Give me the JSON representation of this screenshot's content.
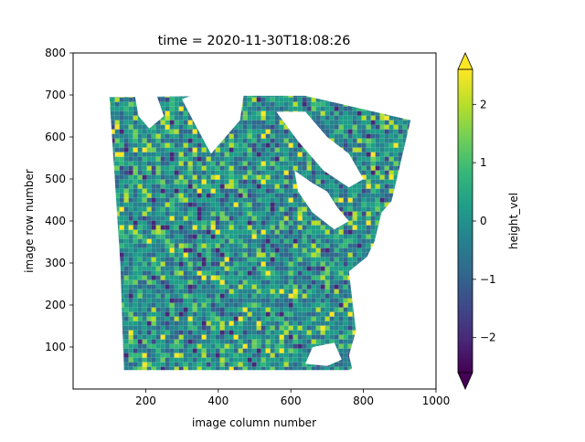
{
  "chart_data": {
    "type": "heatmap",
    "title": "time = 2020-11-30T18:08:26",
    "xlabel": "image column number",
    "ylabel": "image row number",
    "xlim": [
      0,
      1000
    ],
    "ylim": [
      0,
      800
    ],
    "xticks": [
      200,
      400,
      600,
      800,
      1000
    ],
    "yticks": [
      100,
      200,
      300,
      400,
      500,
      600,
      700,
      800
    ],
    "colorbar": {
      "label": "height_vel",
      "ticks": [
        -2,
        -1,
        0,
        1,
        2
      ],
      "tick_labels": [
        "−2",
        "−1",
        "0",
        "1",
        "2"
      ],
      "vmin": -2.6,
      "vmax": 2.6,
      "extend": "both",
      "colormap": "viridis"
    },
    "data_extent": {
      "corners": [
        [
          100,
          695
        ],
        [
          440,
          698
        ],
        [
          140,
          45
        ],
        [
          640,
          45
        ],
        [
          930,
          640
        ],
        [
          870,
          420
        ],
        [
          760,
          45
        ]
      ]
    },
    "colors": {
      "viridis": [
        "#440154",
        "#482878",
        "#3e4989",
        "#31688e",
        "#26828e",
        "#1f9e89",
        "#35b779",
        "#6ece58",
        "#b5de2b",
        "#fde725"
      ],
      "missing": "#ffffff"
    }
  }
}
